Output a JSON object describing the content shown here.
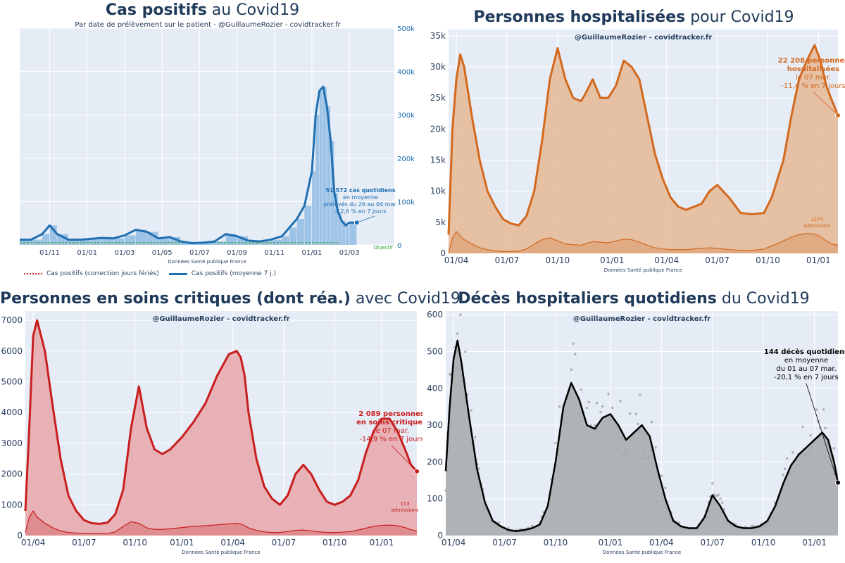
{
  "charts": [
    {
      "id": "cas",
      "title_bold": "Cas positifs",
      "title_rest": " au Covid19",
      "subtitle": "Par date de prélèvement sur le patient - @GuillaumeRozier - covidtracker.fr",
      "source": "Données Santé publique France",
      "legend": [
        "Cas positifs (correction jours fériés)",
        "Cas positifs (moyenne 7 j.)"
      ],
      "annotation": [
        "51 572 cas quotidiens",
        "en moyenne",
        "prélevés du 26 au 04 mar.",
        "-12,6 % en 7 jours"
      ],
      "objective_label": "Objectif",
      "colors": {
        "line": "#1f6fb2",
        "bars": "#7fb2e0",
        "objective": "#2ca02c",
        "correction": "#d62728"
      }
    },
    {
      "id": "hosp",
      "title_bold": "Personnes hospitalisées",
      "title_rest": " pour Covid19",
      "subtitle": "@GuillaumeRozier - covidtracker.fr",
      "source": "Données Santé publique France",
      "annotation": [
        "22 208 personnes",
        "hospitalisées",
        "le 07 mar.",
        "-11,4 % en 7 jours"
      ],
      "admissions_label": [
        "1274",
        "admissions"
      ],
      "colors": {
        "line": "#d2691e",
        "fill": "#e5b894"
      }
    },
    {
      "id": "rea",
      "title_bold": "Personnes en soins critiques (dont réa.)",
      "title_rest": " avec Covid19",
      "subtitle": "@GuillaumeRozier - covidtracker.fr",
      "source": "Données Santé publique France",
      "annotation": [
        "2 089 personnes",
        "en soins critiques",
        "le 07 mar.",
        "-14,9 % en 7 jours"
      ],
      "admissions_label": [
        "153",
        "admissions"
      ],
      "colors": {
        "line": "#c81e1e",
        "fill": "#e8a7aa"
      }
    },
    {
      "id": "deces",
      "title_bold": "Décès hospitaliers quotidiens",
      "title_rest": " du Covid19",
      "subtitle": "@GuillaumeRozier - covidtracker.fr",
      "source": "Données Santé publique France",
      "annotation": [
        "144 décès quotidiens",
        "en moyenne",
        "du 01 au 07 mar.",
        "-20,1 % en 7 jours"
      ],
      "colors": {
        "line": "#000000",
        "fill": "#a6a9ad",
        "dots": "#9a9a9a"
      }
    }
  ],
  "chart_data": [
    {
      "type": "line",
      "ylabel": "",
      "xlabel": "",
      "ylim": [
        0,
        500000
      ],
      "y_ticks": [
        0,
        100000,
        200000,
        300000,
        400000,
        500000
      ],
      "y_tick_labels": [
        "0",
        "100k",
        "200k",
        "300k",
        "400k",
        "500k"
      ],
      "x_ticks": [
        "01/11",
        "01/01",
        "01/03",
        "01/05",
        "01/07",
        "01/09",
        "01/11",
        "01/01",
        "01/03"
      ],
      "x_tick_pos": [
        0.08,
        0.18,
        0.28,
        0.38,
        0.48,
        0.58,
        0.68,
        0.78,
        0.88
      ],
      "x": [
        0,
        0.03,
        0.06,
        0.08,
        0.1,
        0.13,
        0.16,
        0.19,
        0.22,
        0.25,
        0.28,
        0.31,
        0.34,
        0.37,
        0.4,
        0.43,
        0.46,
        0.49,
        0.52,
        0.55,
        0.58,
        0.61,
        0.64,
        0.67,
        0.7,
        0.72,
        0.74,
        0.76,
        0.78,
        0.79,
        0.8,
        0.81,
        0.82,
        0.83,
        0.84,
        0.85,
        0.86,
        0.87,
        0.88,
        0.9
      ],
      "series": [
        {
          "name": "Cas positifs (moyenne 7 j.)",
          "values": [
            12000,
            12000,
            25000,
            45000,
            25000,
            12000,
            12000,
            14000,
            16000,
            15000,
            22000,
            35000,
            30000,
            15000,
            18000,
            8000,
            4000,
            5000,
            8000,
            25000,
            20000,
            10000,
            8000,
            12000,
            20000,
            40000,
            60000,
            90000,
            170000,
            300000,
            355000,
            365000,
            320000,
            240000,
            120000,
            75000,
            55000,
            45000,
            51572,
            51572
          ]
        }
      ]
    },
    {
      "type": "area",
      "ylim": [
        0,
        36000
      ],
      "y_ticks": [
        0,
        5000,
        10000,
        15000,
        20000,
        25000,
        30000,
        35000
      ],
      "y_tick_labels": [
        "0",
        "5k",
        "10k",
        "15k",
        "20k",
        "25k",
        "30k",
        "35k"
      ],
      "x_ticks": [
        "01/04",
        "01/07",
        "01/10",
        "01/01",
        "01/04",
        "01/07",
        "01/10",
        "01/01"
      ],
      "x_tick_pos": [
        0.02,
        0.15,
        0.28,
        0.42,
        0.56,
        0.69,
        0.82,
        0.95
      ],
      "x": [
        0,
        0.01,
        0.02,
        0.03,
        0.04,
        0.06,
        0.08,
        0.1,
        0.12,
        0.14,
        0.16,
        0.18,
        0.2,
        0.22,
        0.24,
        0.26,
        0.28,
        0.3,
        0.32,
        0.34,
        0.35,
        0.37,
        0.39,
        0.41,
        0.43,
        0.45,
        0.47,
        0.49,
        0.51,
        0.53,
        0.55,
        0.57,
        0.59,
        0.61,
        0.63,
        0.65,
        0.67,
        0.69,
        0.72,
        0.75,
        0.78,
        0.81,
        0.83,
        0.86,
        0.88,
        0.9,
        0.92,
        0.94,
        0.955,
        0.97,
        0.985,
        1
      ],
      "series": [
        {
          "name": "hospitalisés",
          "values": [
            3000,
            20000,
            28000,
            32000,
            30000,
            22000,
            15000,
            10000,
            7500,
            5500,
            4800,
            4500,
            6000,
            10000,
            18000,
            28000,
            33000,
            28000,
            25000,
            24500,
            25500,
            28000,
            25000,
            25000,
            27000,
            31000,
            30000,
            28000,
            22000,
            16000,
            12000,
            9000,
            7500,
            7000,
            7500,
            8000,
            10000,
            11000,
            9000,
            6500,
            6300,
            6500,
            9000,
            15000,
            22000,
            28000,
            31000,
            33500,
            31000,
            27000,
            24500,
            22208
          ]
        },
        {
          "name": "admissions",
          "values": [
            0,
            2500,
            3500,
            2800,
            2200,
            1500,
            900,
            600,
            400,
            300,
            300,
            350,
            700,
            1500,
            2200,
            2500,
            2000,
            1500,
            1400,
            1300,
            1500,
            1900,
            1800,
            1700,
            2000,
            2300,
            2200,
            1800,
            1300,
            900,
            700,
            600,
            600,
            600,
            700,
            800,
            900,
            800,
            600,
            500,
            500,
            700,
            1200,
            2000,
            2600,
            3000,
            3200,
            3100,
            2700,
            2000,
            1500,
            1274
          ]
        }
      ]
    },
    {
      "type": "area",
      "ylim": [
        0,
        7300
      ],
      "y_ticks": [
        0,
        1000,
        2000,
        3000,
        4000,
        5000,
        6000,
        7000
      ],
      "y_tick_labels": [
        "0",
        "1000",
        "2000",
        "3000",
        "4000",
        "5000",
        "6000",
        "7000"
      ],
      "x_ticks": [
        "01/04",
        "01/07",
        "01/10",
        "01/01",
        "01/04",
        "01/07",
        "01/10",
        "01/01"
      ],
      "x_tick_pos": [
        0.02,
        0.15,
        0.28,
        0.4,
        0.53,
        0.66,
        0.79,
        0.91
      ],
      "x": [
        0,
        0.01,
        0.02,
        0.03,
        0.05,
        0.07,
        0.09,
        0.11,
        0.13,
        0.15,
        0.17,
        0.19,
        0.21,
        0.23,
        0.25,
        0.27,
        0.29,
        0.31,
        0.33,
        0.35,
        0.37,
        0.4,
        0.43,
        0.46,
        0.49,
        0.52,
        0.54,
        0.55,
        0.56,
        0.57,
        0.59,
        0.61,
        0.63,
        0.65,
        0.67,
        0.69,
        0.71,
        0.73,
        0.75,
        0.77,
        0.79,
        0.81,
        0.83,
        0.85,
        0.87,
        0.89,
        0.91,
        0.93,
        0.95,
        0.97,
        0.985,
        1
      ],
      "series": [
        {
          "name": "soins critiques",
          "values": [
            800,
            3500,
            6500,
            7000,
            6000,
            4200,
            2500,
            1300,
            800,
            500,
            400,
            380,
            420,
            700,
            1500,
            3500,
            4850,
            3500,
            2800,
            2650,
            2800,
            3200,
            3700,
            4300,
            5200,
            5900,
            6000,
            5800,
            5200,
            4000,
            2500,
            1600,
            1200,
            1000,
            1300,
            2000,
            2300,
            2000,
            1500,
            1100,
            1000,
            1100,
            1300,
            1800,
            2700,
            3400,
            3800,
            3800,
            3400,
            2800,
            2300,
            2089
          ]
        },
        {
          "name": "admissions",
          "values": [
            100,
            600,
            800,
            600,
            400,
            250,
            150,
            100,
            80,
            70,
            60,
            60,
            70,
            120,
            300,
            450,
            400,
            250,
            200,
            200,
            220,
            260,
            300,
            320,
            350,
            380,
            400,
            380,
            320,
            250,
            170,
            120,
            100,
            100,
            130,
            170,
            180,
            150,
            120,
            100,
            100,
            110,
            130,
            180,
            240,
            300,
            330,
            340,
            320,
            260,
            190,
            153
          ]
        }
      ]
    },
    {
      "type": "area",
      "ylim": [
        0,
        610
      ],
      "y_ticks": [
        0,
        100,
        200,
        300,
        400,
        500,
        600
      ],
      "y_tick_labels": [
        "0",
        "100",
        "200",
        "300",
        "400",
        "500",
        "600"
      ],
      "x_ticks": [
        "01/04",
        "01/07",
        "01/10",
        "01/01",
        "01/04",
        "01/07",
        "01/10",
        "01/01"
      ],
      "x_tick_pos": [
        0.02,
        0.15,
        0.28,
        0.42,
        0.55,
        0.68,
        0.81,
        0.94
      ],
      "x": [
        0,
        0.01,
        0.02,
        0.03,
        0.04,
        0.06,
        0.08,
        0.1,
        0.12,
        0.14,
        0.16,
        0.18,
        0.2,
        0.22,
        0.24,
        0.26,
        0.28,
        0.3,
        0.32,
        0.34,
        0.36,
        0.38,
        0.4,
        0.42,
        0.44,
        0.46,
        0.48,
        0.5,
        0.52,
        0.54,
        0.56,
        0.58,
        0.6,
        0.62,
        0.64,
        0.66,
        0.68,
        0.7,
        0.72,
        0.74,
        0.76,
        0.78,
        0.8,
        0.82,
        0.84,
        0.86,
        0.88,
        0.9,
        0.92,
        0.94,
        0.96,
        0.975,
        0.99,
        1
      ],
      "series": [
        {
          "name": "décès (moyenne 7 j.)",
          "values": [
            175,
            350,
            480,
            530,
            470,
            320,
            180,
            90,
            40,
            25,
            15,
            12,
            15,
            20,
            30,
            80,
            200,
            350,
            415,
            370,
            300,
            290,
            320,
            330,
            300,
            260,
            280,
            300,
            270,
            180,
            100,
            40,
            25,
            20,
            20,
            50,
            110,
            80,
            40,
            25,
            20,
            20,
            25,
            40,
            80,
            140,
            190,
            220,
            240,
            260,
            280,
            260,
            200,
            144
          ]
        }
      ]
    }
  ]
}
